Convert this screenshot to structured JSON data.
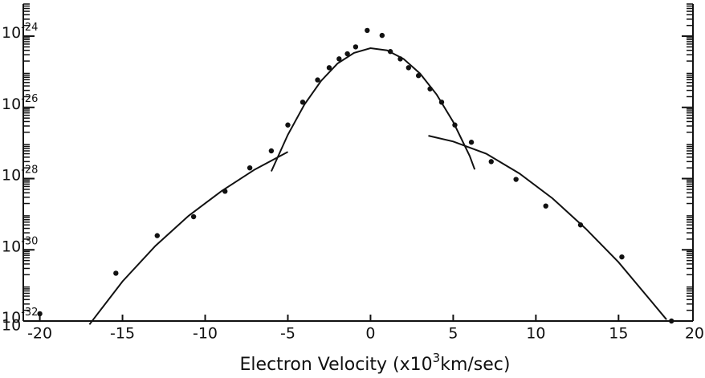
{
  "chart_data": {
    "type": "scatter",
    "xlabel": "Electron Velocity (x10",
    "xlabel_sup": "3",
    "xlabel_end": "km/sec)",
    "annotations": [
      "10"
    ],
    "log_y": true,
    "color": "#111111",
    "xlim": [
      -21,
      19.5
    ],
    "ylim": [
      1e-32,
      8e-24
    ],
    "xticks": [
      -20,
      -15,
      -10,
      -5,
      0,
      5,
      10,
      15,
      20
    ],
    "yticks": [
      {
        "value": 1e-24,
        "label": "10",
        "exponent": "-24"
      },
      {
        "value": 1e-26,
        "label": "10",
        "exponent": "-26"
      },
      {
        "value": 1e-28,
        "label": "10",
        "exponent": "-28"
      },
      {
        "value": 1e-30,
        "label": "10",
        "exponent": "-30"
      },
      {
        "value": 1e-32,
        "label": "10",
        "exponent": "-32"
      }
    ],
    "x": [
      -20,
      -15.4,
      -12.9,
      -10.7,
      -8.8,
      -7.3,
      -6.0,
      -5.0,
      -4.1,
      -3.2,
      -2.5,
      -1.9,
      -1.4,
      -0.9,
      -0.2,
      0.7,
      1.2,
      1.8,
      2.3,
      2.9,
      3.6,
      4.3,
      5.1,
      6.1,
      7.3,
      8.8,
      10.6,
      12.7,
      15.2,
      18.2
    ],
    "values": [
      1.6e-32,
      2.2e-31,
      2.5e-30,
      8.5e-30,
      4.4e-29,
      2e-28,
      6e-28,
      3.2e-27,
      1.4e-26,
      5.9e-26,
      1.3e-25,
      2.3e-25,
      3.2e-25,
      5e-25,
      1.45e-24,
      1.05e-24,
      3.7e-25,
      2.3e-25,
      1.3e-25,
      7.8e-26,
      3.3e-26,
      1.4e-26,
      3.2e-27,
      1.05e-27,
      3e-28,
      9.5e-29,
      1.7e-29,
      5e-30,
      6.3e-31,
      1e-32
    ],
    "curves": [
      {
        "x": [
          -6,
          -5,
          -4,
          -3,
          -2,
          -1,
          0,
          1,
          2,
          3,
          4,
          5,
          6,
          6.3
        ],
        "values": [
          1.6e-28,
          1.7e-27,
          1.2e-26,
          5.5e-26,
          1.7e-25,
          3.4e-25,
          4.6e-25,
          4e-25,
          2.3e-25,
          8.9e-26,
          2.3e-26,
          3.9e-27,
          4.3e-28,
          1.8e-28
        ]
      },
      {
        "x": [
          -17,
          -15,
          -13,
          -11,
          -9,
          -7,
          -5
        ],
        "values": [
          8e-33,
          1.3e-31,
          1.3e-30,
          9e-30,
          4.5e-29,
          1.8e-28,
          5.6e-28
        ]
      },
      {
        "x": [
          3.5,
          5,
          7,
          9,
          11,
          13,
          15,
          17,
          17.9
        ],
        "values": [
          1.6e-27,
          1.1e-27,
          5e-28,
          1.4e-28,
          2.8e-29,
          4e-30,
          4.5e-31,
          3.5e-32,
          1.1e-32
        ]
      }
    ]
  }
}
